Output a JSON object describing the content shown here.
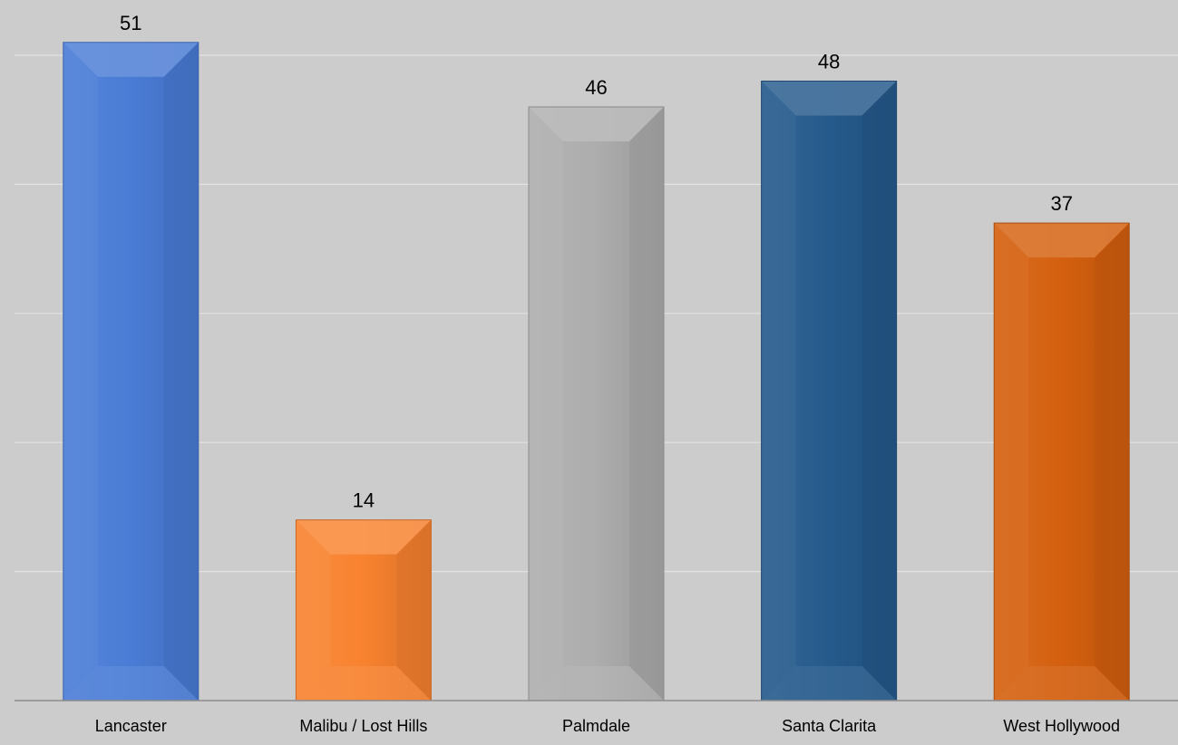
{
  "chart_data": {
    "type": "bar",
    "title": "",
    "xlabel": "",
    "ylabel": "",
    "categories": [
      "Lancaster",
      "Malibu / Lost Hills",
      "Palmdale",
      "Santa Clarita",
      "West Hollywood"
    ],
    "values": [
      51,
      14,
      46,
      48,
      37
    ],
    "value_labels": [
      "51",
      "14",
      "46",
      "48",
      "37"
    ],
    "ylim": [
      0,
      50
    ],
    "gridlines": [
      10,
      20,
      30,
      40,
      50
    ],
    "grid": true,
    "legend": "none",
    "bar_colors": [
      "#4a7cd6",
      "#f8822f",
      "#adadad",
      "#255a8c",
      "#d4600f"
    ],
    "background": "#cccccc"
  }
}
